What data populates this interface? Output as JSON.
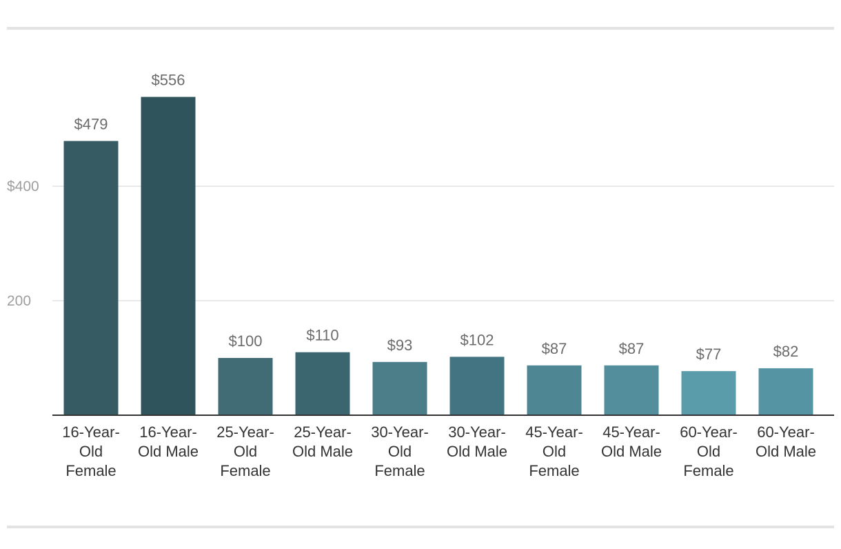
{
  "chart_data": {
    "type": "bar",
    "title": "",
    "xlabel": "",
    "ylabel": "",
    "ylim": [
      0,
      600
    ],
    "grid": true,
    "y_ticks": [
      {
        "value": 200,
        "label": "200"
      },
      {
        "value": 400,
        "label": "$400"
      }
    ],
    "categories": [
      [
        "16-Year-",
        "Old",
        "Female"
      ],
      [
        "16-Year-",
        "Old Male"
      ],
      [
        "25-Year-",
        "Old",
        "Female"
      ],
      [
        "25-Year-",
        "Old Male"
      ],
      [
        "30-Year-",
        "Old",
        "Female"
      ],
      [
        "30-Year-",
        "Old Male"
      ],
      [
        "45-Year-",
        "Old",
        "Female"
      ],
      [
        "45-Year-",
        "Old Male"
      ],
      [
        "60-Year-",
        "Old",
        "Female"
      ],
      [
        "60-Year-",
        "Old Male"
      ]
    ],
    "values": [
      479,
      556,
      100,
      110,
      93,
      102,
      87,
      87,
      77,
      82
    ],
    "value_labels": [
      "$479",
      "$556",
      "$100",
      "$110",
      "$93",
      "$102",
      "$87",
      "$87",
      "$77",
      "$82"
    ],
    "colors": [
      "#365b63",
      "#30545c",
      "#416c76",
      "#3b6670",
      "#4b7e89",
      "#437481",
      "#4e8793",
      "#528e9b",
      "#5b9cab",
      "#5595a3"
    ]
  }
}
